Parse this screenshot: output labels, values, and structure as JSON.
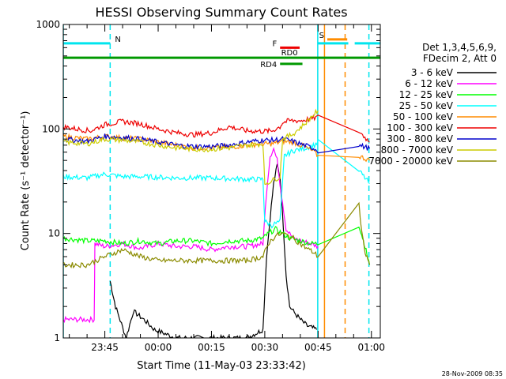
{
  "chart_data": {
    "type": "line",
    "title": "HESSI Observing Summary Count Rates",
    "xlabel": "Start Time (11-May-03 23:33:42)",
    "ylabel": "Count Rate (s⁻¹ detector⁻¹)",
    "yscale": "log",
    "ylim": [
      1,
      1000
    ],
    "xlim_minutes": [
      -11.7,
      77.5
    ],
    "xticks": [
      {
        "label": "23:45",
        "min": 0
      },
      {
        "label": "00:00",
        "min": 15
      },
      {
        "label": "00:15",
        "min": 30
      },
      {
        "label": "00:30",
        "min": 45
      },
      {
        "label": "00:45",
        "min": 60
      },
      {
        "label": "01:00",
        "min": 75
      }
    ],
    "yticks": [
      {
        "label": "1",
        "value": 1
      },
      {
        "label": "10",
        "value": 10
      },
      {
        "label": "100",
        "value": 100
      },
      {
        "label": "1000",
        "value": 1000
      }
    ],
    "legend": {
      "position": "right",
      "header1": "Det 1,3,4,5,6,9,",
      "header2": "FDecim 2, Att 0"
    },
    "flags": [
      {
        "label": "N",
        "y": 660,
        "color": "#00e5ee",
        "segments": [
          [
            -11.7,
            1.5
          ],
          [
            59.8,
            68.5
          ],
          [
            70.3,
            77.5
          ]
        ]
      },
      {
        "label": "S",
        "y": 720,
        "color": "#ff8c00",
        "segments": [
          [
            62.6,
            68.2
          ]
        ]
      },
      {
        "label": "F",
        "y": 600,
        "color": "#ee0000",
        "segments": [
          [
            49.3,
            54.8
          ]
        ]
      },
      {
        "label": "RD0",
        "y": 480,
        "color": "#009900",
        "segments": [
          [
            -11.7,
            77.5
          ]
        ]
      },
      {
        "label": "RD4",
        "y": 420,
        "color": "#009900",
        "segments": [
          [
            49.3,
            55.6
          ]
        ]
      }
    ],
    "vlines": [
      {
        "min": -11.7,
        "color": "#00e5ee",
        "style": "solid"
      },
      {
        "min": 1.5,
        "color": "#00e5ee",
        "style": "dash"
      },
      {
        "min": 59.9,
        "color": "#00e5ee",
        "style": "solid"
      },
      {
        "min": 61.8,
        "color": "#ff8c00",
        "style": "solid"
      },
      {
        "min": 67.6,
        "color": "#ff8c00",
        "style": "dash"
      },
      {
        "min": 74.3,
        "color": "#00e5ee",
        "style": "dash"
      }
    ],
    "series": [
      {
        "name": "3 - 6 keV",
        "color": "#000000",
        "points": [
          [
            1.5,
            3.5
          ],
          [
            3,
            2
          ],
          [
            6,
            1
          ],
          [
            8,
            1.8
          ],
          [
            11,
            1.5
          ],
          [
            14,
            1.2
          ],
          [
            20,
            1.0
          ],
          [
            40,
            1.0
          ],
          [
            44.5,
            1.2
          ],
          [
            45.5,
            6
          ],
          [
            46.5,
            14
          ],
          [
            47.5,
            30
          ],
          [
            48.5,
            45
          ],
          [
            49.3,
            35
          ],
          [
            50.2,
            12
          ],
          [
            51,
            4
          ],
          [
            52,
            2
          ],
          [
            53,
            1.8
          ],
          [
            55,
            1.5
          ],
          [
            57,
            1.3
          ],
          [
            59.6,
            1.2
          ]
        ]
      },
      {
        "name": "6 - 12 keV",
        "color": "#ff00ff",
        "points": [
          [
            -11.7,
            1.5
          ],
          [
            -3,
            1.5
          ],
          [
            -2.8,
            8
          ],
          [
            0,
            7.5
          ],
          [
            5,
            8
          ],
          [
            10,
            7.2
          ],
          [
            15,
            8
          ],
          [
            20,
            7.5
          ],
          [
            25,
            7.5
          ],
          [
            30,
            7
          ],
          [
            35,
            7.5
          ],
          [
            40,
            7.5
          ],
          [
            44.5,
            8
          ],
          [
            45.5,
            25
          ],
          [
            46.5,
            55
          ],
          [
            47.5,
            65
          ],
          [
            48.5,
            50
          ],
          [
            49.3,
            30
          ],
          [
            50,
            20
          ],
          [
            51,
            11
          ],
          [
            53,
            9
          ],
          [
            55,
            8.5
          ],
          [
            58,
            8
          ],
          [
            60,
            7.5
          ]
        ]
      },
      {
        "name": "12 - 25 keV",
        "color": "#00ff00",
        "points": [
          [
            -11.7,
            9
          ],
          [
            -5,
            8.5
          ],
          [
            0,
            8.5
          ],
          [
            5,
            8
          ],
          [
            10,
            8.5
          ],
          [
            15,
            8
          ],
          [
            20,
            8.5
          ],
          [
            25,
            8.5
          ],
          [
            30,
            8
          ],
          [
            35,
            8.5
          ],
          [
            40,
            8.5
          ],
          [
            44.5,
            9
          ],
          [
            46,
            10
          ],
          [
            48,
            11
          ],
          [
            50,
            10
          ],
          [
            52,
            9
          ],
          [
            55,
            8.5
          ],
          [
            58,
            8
          ],
          [
            60,
            8
          ],
          [
            71.5,
            12
          ],
          [
            73,
            8
          ],
          [
            74.5,
            5
          ]
        ]
      },
      {
        "name": "25 - 50 keV",
        "color": "#00ffff",
        "points": [
          [
            -11.7,
            35
          ],
          [
            -5,
            34
          ],
          [
            0,
            37
          ],
          [
            5,
            35
          ],
          [
            10,
            35
          ],
          [
            20,
            34
          ],
          [
            30,
            34
          ],
          [
            40,
            33
          ],
          [
            44.5,
            33
          ],
          [
            45,
            13
          ],
          [
            47,
            12
          ],
          [
            49.3,
            13
          ],
          [
            50.5,
            55
          ],
          [
            53,
            62
          ],
          [
            56,
            65
          ],
          [
            59,
            70
          ],
          [
            60,
            75
          ],
          [
            71.5,
            40
          ],
          [
            74.5,
            30
          ]
        ]
      },
      {
        "name": "50 - 100 keV",
        "color": "#ff8c00",
        "points": [
          [
            -11.7,
            85
          ],
          [
            -5,
            80
          ],
          [
            0,
            85
          ],
          [
            5,
            82
          ],
          [
            10,
            80
          ],
          [
            15,
            75
          ],
          [
            20,
            70
          ],
          [
            25,
            66
          ],
          [
            30,
            66
          ],
          [
            35,
            67
          ],
          [
            40,
            70
          ],
          [
            44.5,
            72
          ],
          [
            47,
            72
          ],
          [
            50,
            76
          ],
          [
            53,
            75
          ],
          [
            56,
            68
          ],
          [
            59,
            60
          ],
          [
            60,
            55
          ],
          [
            71.5,
            55
          ],
          [
            74.5,
            50
          ]
        ]
      },
      {
        "name": "100 - 300 keV",
        "color": "#ee0000",
        "points": [
          [
            -11.7,
            105
          ],
          [
            -8,
            100
          ],
          [
            -4,
            96
          ],
          [
            0,
            110
          ],
          [
            5,
            118
          ],
          [
            10,
            112
          ],
          [
            15,
            100
          ],
          [
            20,
            92
          ],
          [
            25,
            88
          ],
          [
            30,
            92
          ],
          [
            35,
            105
          ],
          [
            40,
            96
          ],
          [
            44.5,
            95
          ],
          [
            47,
            96
          ],
          [
            49.3,
            105
          ],
          [
            50,
            115
          ],
          [
            52,
            120
          ],
          [
            55,
            120
          ],
          [
            58,
            125
          ],
          [
            60,
            130
          ],
          [
            71.5,
            95
          ],
          [
            74.5,
            75
          ]
        ]
      },
      {
        "name": "300 - 800 keV",
        "color": "#0000cc",
        "points": [
          [
            -11.7,
            80
          ],
          [
            -5,
            76
          ],
          [
            0,
            85
          ],
          [
            5,
            83
          ],
          [
            10,
            80
          ],
          [
            15,
            75
          ],
          [
            20,
            70
          ],
          [
            25,
            68
          ],
          [
            30,
            68
          ],
          [
            35,
            70
          ],
          [
            40,
            75
          ],
          [
            44.5,
            78
          ],
          [
            47,
            78
          ],
          [
            50,
            80
          ],
          [
            53,
            76
          ],
          [
            56,
            70
          ],
          [
            59,
            65
          ],
          [
            60,
            62
          ],
          [
            71.5,
            70
          ],
          [
            74.5,
            65
          ]
        ]
      },
      {
        "name": "800 - 7000 keV",
        "color": "#cccc00",
        "points": [
          [
            -11.7,
            75
          ],
          [
            -5,
            72
          ],
          [
            0,
            80
          ],
          [
            5,
            78
          ],
          [
            10,
            75
          ],
          [
            15,
            70
          ],
          [
            20,
            66
          ],
          [
            25,
            64
          ],
          [
            30,
            64
          ],
          [
            35,
            66
          ],
          [
            40,
            70
          ],
          [
            44.5,
            72
          ],
          [
            45,
            30
          ],
          [
            47,
            32
          ],
          [
            49.3,
            35
          ],
          [
            50,
            80
          ],
          [
            53,
            90
          ],
          [
            56,
            110
          ],
          [
            59,
            140
          ],
          [
            60,
            150
          ]
        ]
      },
      {
        "name": "7000 - 20000 keV",
        "color": "#8b8b00",
        "points": [
          [
            -11.7,
            5
          ],
          [
            -5,
            5
          ],
          [
            0,
            6
          ],
          [
            5,
            7
          ],
          [
            10,
            6
          ],
          [
            15,
            5.5
          ],
          [
            20,
            5.5
          ],
          [
            25,
            5.5
          ],
          [
            30,
            5.5
          ],
          [
            35,
            5.5
          ],
          [
            40,
            5.5
          ],
          [
            44.5,
            6
          ],
          [
            46,
            8
          ],
          [
            48,
            9.5
          ],
          [
            50,
            10
          ],
          [
            53,
            9
          ],
          [
            56,
            7.5
          ],
          [
            59,
            6.5
          ],
          [
            60,
            6
          ],
          [
            71.5,
            20
          ],
          [
            72,
            12
          ],
          [
            73,
            7
          ],
          [
            74.5,
            5
          ]
        ]
      }
    ]
  },
  "footer": {
    "timestamp": "28-Nov-2009 08:35"
  }
}
